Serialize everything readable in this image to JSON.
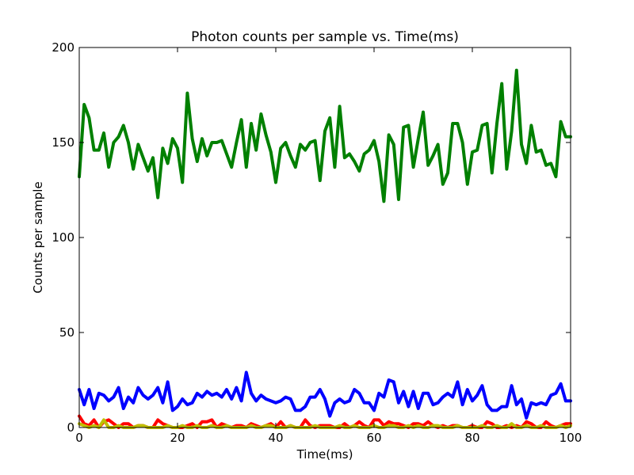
{
  "chart_data": {
    "type": "line",
    "title": "Photon counts per sample vs. Time(ms)",
    "xlabel": "Time(ms)",
    "ylabel": "Counts per sample",
    "xlim": [
      0,
      100
    ],
    "ylim": [
      0,
      200
    ],
    "x_ticks": [
      "0",
      "20",
      "40",
      "60",
      "80",
      "100"
    ],
    "y_ticks": [
      "0",
      "50",
      "100",
      "150",
      "200"
    ],
    "grid": false,
    "legend": "none",
    "x": [
      0,
      1,
      2,
      3,
      4,
      5,
      6,
      7,
      8,
      9,
      10,
      11,
      12,
      13,
      14,
      15,
      16,
      17,
      18,
      19,
      20,
      21,
      22,
      23,
      24,
      25,
      26,
      27,
      28,
      29,
      30,
      31,
      32,
      33,
      34,
      35,
      36,
      37,
      38,
      39,
      40,
      41,
      42,
      43,
      44,
      45,
      46,
      47,
      48,
      49,
      50,
      51,
      52,
      53,
      54,
      55,
      56,
      57,
      58,
      59,
      60,
      61,
      62,
      63,
      64,
      65,
      66,
      67,
      68,
      69,
      70,
      71,
      72,
      73,
      74,
      75,
      76,
      77,
      78,
      79,
      80,
      81,
      82,
      83,
      84,
      85,
      86,
      87,
      88,
      89,
      90,
      91,
      92,
      93,
      94,
      95,
      96,
      97,
      98,
      99,
      100
    ],
    "series": [
      {
        "color": "#008000",
        "values": [
          132,
          170,
          163,
          146,
          146,
          155,
          137,
          150,
          153,
          159,
          150,
          136,
          149,
          142,
          135,
          142,
          121,
          147,
          139,
          152,
          147,
          129,
          176,
          152,
          140,
          152,
          143,
          150,
          150,
          151,
          144,
          137,
          150,
          162,
          137,
          160,
          146,
          165,
          154,
          145,
          129,
          147,
          150,
          143,
          137,
          149,
          146,
          150,
          151,
          130,
          156,
          163,
          137,
          169,
          142,
          144,
          140,
          135,
          144,
          146,
          151,
          140,
          119,
          154,
          149,
          120,
          158,
          159,
          137,
          152,
          166,
          138,
          143,
          149,
          128,
          134,
          160,
          160,
          150,
          128,
          145,
          146,
          159,
          160,
          134,
          160,
          181,
          136,
          156,
          188,
          149,
          139,
          159,
          145,
          146,
          138,
          139,
          132,
          161,
          153,
          153
        ],
        "values_note": ""
      },
      {
        "color": "#0000ff",
        "values": [
          20,
          12,
          20,
          10,
          18,
          17,
          14,
          16,
          21,
          10,
          16,
          13,
          21,
          17,
          15,
          17,
          21,
          13,
          24,
          9,
          11,
          15,
          12,
          13,
          18,
          16,
          19,
          17,
          18,
          16,
          20,
          15,
          21,
          14,
          29,
          18,
          14,
          17,
          15,
          14,
          13,
          14,
          16,
          15,
          9,
          9,
          11,
          16,
          16,
          20,
          15,
          6,
          13,
          15,
          13,
          14,
          20,
          18,
          13,
          13,
          9,
          18,
          16,
          25,
          24,
          13,
          19,
          11,
          19,
          10,
          18,
          18,
          12,
          13,
          16,
          18,
          16,
          24,
          12,
          20,
          14,
          17,
          22,
          12,
          9,
          9,
          11,
          11,
          22,
          12,
          15,
          5,
          13,
          12,
          13,
          12,
          17,
          18,
          23,
          14,
          14
        ]
      },
      {
        "color": "#ff0000",
        "values": [
          6,
          2,
          1,
          4,
          0,
          3,
          4,
          2,
          0,
          2,
          2,
          0,
          1,
          1,
          0,
          0,
          4,
          2,
          1,
          0,
          0,
          0,
          1,
          2,
          0,
          3,
          3,
          4,
          0,
          2,
          1,
          0,
          1,
          1,
          0,
          2,
          1,
          0,
          1,
          2,
          0,
          3,
          0,
          1,
          0,
          0,
          4,
          1,
          0,
          1,
          1,
          1,
          0,
          0,
          2,
          0,
          1,
          3,
          1,
          0,
          4,
          4,
          1,
          3,
          2,
          2,
          1,
          0,
          2,
          2,
          1,
          3,
          1,
          0,
          1,
          0,
          1,
          1,
          0,
          0,
          1,
          0,
          0,
          3,
          2,
          0,
          0,
          1,
          0,
          1,
          0,
          3,
          2,
          0,
          0,
          3,
          1,
          0,
          1,
          2,
          2
        ]
      },
      {
        "color": "#bfbf00",
        "values": [
          2,
          1,
          0,
          1,
          0,
          4,
          0,
          0,
          1,
          0,
          0,
          0,
          1,
          1,
          0,
          0,
          0,
          0,
          1,
          0,
          0,
          1,
          0,
          0,
          1,
          0,
          0,
          1,
          0,
          0,
          1,
          0,
          0,
          0,
          0,
          1,
          0,
          0,
          1,
          1,
          0,
          0,
          0,
          1,
          0,
          0,
          0,
          0,
          1,
          0,
          0,
          0,
          0,
          1,
          0,
          0,
          1,
          0,
          0,
          0,
          1,
          0,
          0,
          1,
          1,
          0,
          0,
          1,
          0,
          1,
          0,
          0,
          1,
          1,
          0,
          0,
          0,
          1,
          0,
          0,
          0,
          0,
          1,
          0,
          0,
          1,
          0,
          0,
          2,
          0,
          0,
          1,
          0,
          0,
          1,
          0,
          0,
          0,
          1,
          0,
          1
        ]
      }
    ]
  }
}
